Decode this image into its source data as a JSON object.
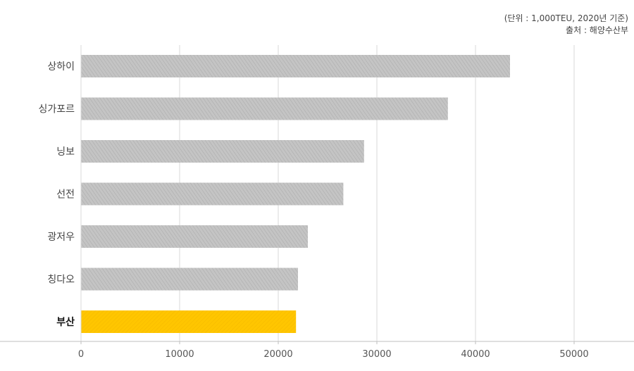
{
  "notes": {
    "unit": "(단위 : 1,000TEU, 2020년 기준)",
    "source": "출처 : 해양수산부"
  },
  "colors": {
    "bar": "#c8c8c8",
    "bar_highlight": "#ffc600",
    "grid": "#d9d9d9",
    "axis": "#bfbfbf"
  },
  "chart_data": {
    "type": "bar",
    "orientation": "horizontal",
    "categories": [
      "상하이",
      "싱가포르",
      "닝보",
      "선전",
      "광저우",
      "칭다오",
      "부산"
    ],
    "values": [
      43500,
      37200,
      28700,
      26600,
      23000,
      22000,
      21800
    ],
    "highlight": "부산",
    "xlim": [
      0,
      55000
    ],
    "xticks": [
      0,
      10000,
      20000,
      30000,
      40000,
      50000
    ],
    "xtick_labels": [
      "0",
      "10000",
      "20000",
      "30000",
      "40000",
      "50000"
    ],
    "grid": true,
    "title": "",
    "xlabel": "",
    "ylabel": ""
  }
}
